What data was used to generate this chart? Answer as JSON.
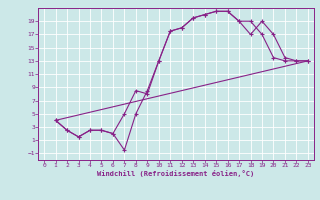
{
  "xlabel": "Windchill (Refroidissement éolien,°C)",
  "bg_color": "#cce8e8",
  "grid_color": "#ffffff",
  "line_color": "#882288",
  "xlim": [
    -0.5,
    23.5
  ],
  "ylim": [
    -2,
    21
  ],
  "xticks": [
    0,
    1,
    2,
    3,
    4,
    5,
    6,
    7,
    8,
    9,
    10,
    11,
    12,
    13,
    14,
    15,
    16,
    17,
    18,
    19,
    20,
    21,
    22,
    23
  ],
  "yticks": [
    -1,
    1,
    3,
    5,
    7,
    9,
    11,
    13,
    15,
    17,
    19
  ],
  "series1_x": [
    1,
    2,
    3,
    4,
    5,
    6,
    7,
    8,
    9,
    10,
    11,
    12,
    13,
    14,
    15,
    16,
    17,
    18,
    19,
    20,
    21,
    22,
    23
  ],
  "series1_y": [
    4,
    2.5,
    1.5,
    2.5,
    2.5,
    2,
    5,
    8.5,
    8,
    13,
    17.5,
    18,
    19.5,
    20,
    20.5,
    20.5,
    19,
    17,
    19,
    17,
    13.5,
    13,
    13
  ],
  "series2_x": [
    1,
    2,
    3,
    4,
    5,
    6,
    7,
    8,
    9,
    10,
    11,
    12,
    13,
    14,
    15,
    16,
    17,
    18,
    19,
    20,
    21,
    22,
    23
  ],
  "series2_y": [
    4,
    2.5,
    1.5,
    2.5,
    2.5,
    2,
    -0.5,
    5,
    8.5,
    13,
    17.5,
    18,
    19.5,
    20,
    20.5,
    20.5,
    19,
    19,
    17,
    13.5,
    13,
    13,
    13
  ],
  "series3_x": [
    1,
    23
  ],
  "series3_y": [
    4,
    13
  ]
}
